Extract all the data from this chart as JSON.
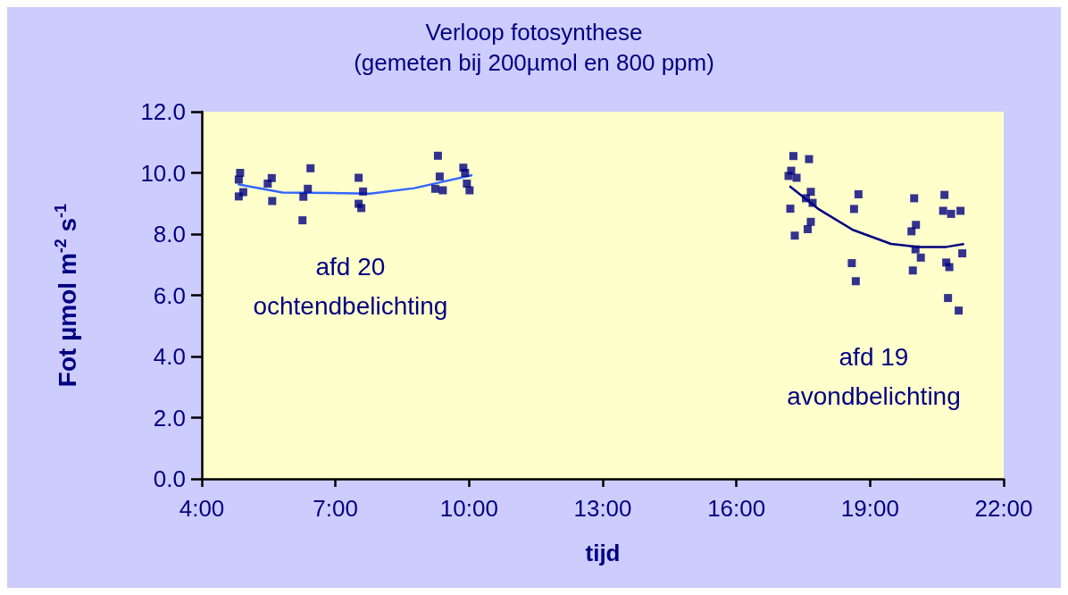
{
  "chart_data": {
    "type": "scatter",
    "title": "Verloop fotosynthese",
    "subtitle": "(gemeten bij 200µmol en 800 ppm)",
    "xlabel": "tijd",
    "ylabel": "Fot µmol m$^{-2}$ s$^{-1}$",
    "marker": "square",
    "xlim": [
      4,
      22
    ],
    "xticks": [
      {
        "value": 4,
        "label": "4:00"
      },
      {
        "value": 7,
        "label": "7:00"
      },
      {
        "value": 10,
        "label": "10:00"
      },
      {
        "value": 13,
        "label": "13:00"
      },
      {
        "value": 16,
        "label": "16:00"
      },
      {
        "value": 19,
        "label": "19:00"
      },
      {
        "value": 22,
        "label": "22:00"
      }
    ],
    "ylim": [
      0,
      12
    ],
    "yticks": [
      {
        "value": 0,
        "label": "0.0"
      },
      {
        "value": 2,
        "label": "2.0"
      },
      {
        "value": 4,
        "label": "4.0"
      },
      {
        "value": 6,
        "label": "6.0"
      },
      {
        "value": 8,
        "label": "8.0"
      },
      {
        "value": 10,
        "label": "10.0"
      },
      {
        "value": 12,
        "label": "12.0"
      }
    ],
    "series": [
      {
        "color": "#000080",
        "x": [
          4.86,
          4.83,
          4.83,
          4.93,
          5.57,
          5.48,
          5.58,
          6.44,
          6.38,
          6.28,
          6.26,
          7.52,
          7.62,
          7.52,
          7.58,
          9.3,
          9.34,
          9.24,
          9.41,
          9.87,
          9.91,
          9.95,
          10.01
        ],
        "values": [
          10.0,
          9.78,
          9.23,
          9.37,
          9.83,
          9.65,
          9.08,
          10.15,
          9.48,
          9.22,
          8.45,
          9.84,
          9.39,
          8.99,
          8.85,
          10.56,
          9.88,
          9.48,
          9.43,
          10.17,
          10.0,
          9.65,
          9.43
        ]
      },
      {
        "type": "line",
        "color": "#3366ff",
        "marker": "none",
        "line_style": "solid",
        "x": [
          4.83,
          5.81,
          6.86,
          7.78,
          8.77,
          10.05
        ],
        "values": [
          9.62,
          9.36,
          9.34,
          9.32,
          9.5,
          9.92
        ]
      },
      {
        "color": "#000080",
        "x": [
          17.28,
          17.63,
          17.23,
          17.17,
          17.35,
          17.67,
          17.56,
          17.71,
          17.21,
          17.67,
          17.6,
          17.31,
          18.74,
          18.64,
          18.59,
          18.68,
          19.99,
          20.03,
          19.93,
          20.02,
          20.14,
          19.96,
          20.67,
          20.64,
          20.82,
          21.03,
          21.07,
          20.71,
          20.78,
          20.75,
          20.99
        ],
        "values": [
          10.55,
          10.45,
          10.07,
          9.9,
          9.84,
          9.38,
          9.17,
          9.02,
          8.83,
          8.4,
          8.16,
          7.95,
          9.3,
          8.82,
          7.05,
          6.46,
          9.17,
          8.3,
          8.09,
          7.5,
          7.23,
          6.81,
          9.28,
          8.76,
          8.66,
          8.76,
          7.37,
          7.07,
          6.92,
          5.91,
          5.5
        ]
      },
      {
        "type": "line",
        "color": "#000080",
        "marker": "none",
        "line_style": "solid",
        "x": [
          17.21,
          17.83,
          18.61,
          19.47,
          20.06,
          20.71,
          21.09
        ],
        "values": [
          9.55,
          8.83,
          8.14,
          7.68,
          7.58,
          7.58,
          7.67
        ]
      }
    ],
    "annotations": [
      "afd 20\nochtendbelichting",
      "afd 19\navondbelichting"
    ]
  }
}
